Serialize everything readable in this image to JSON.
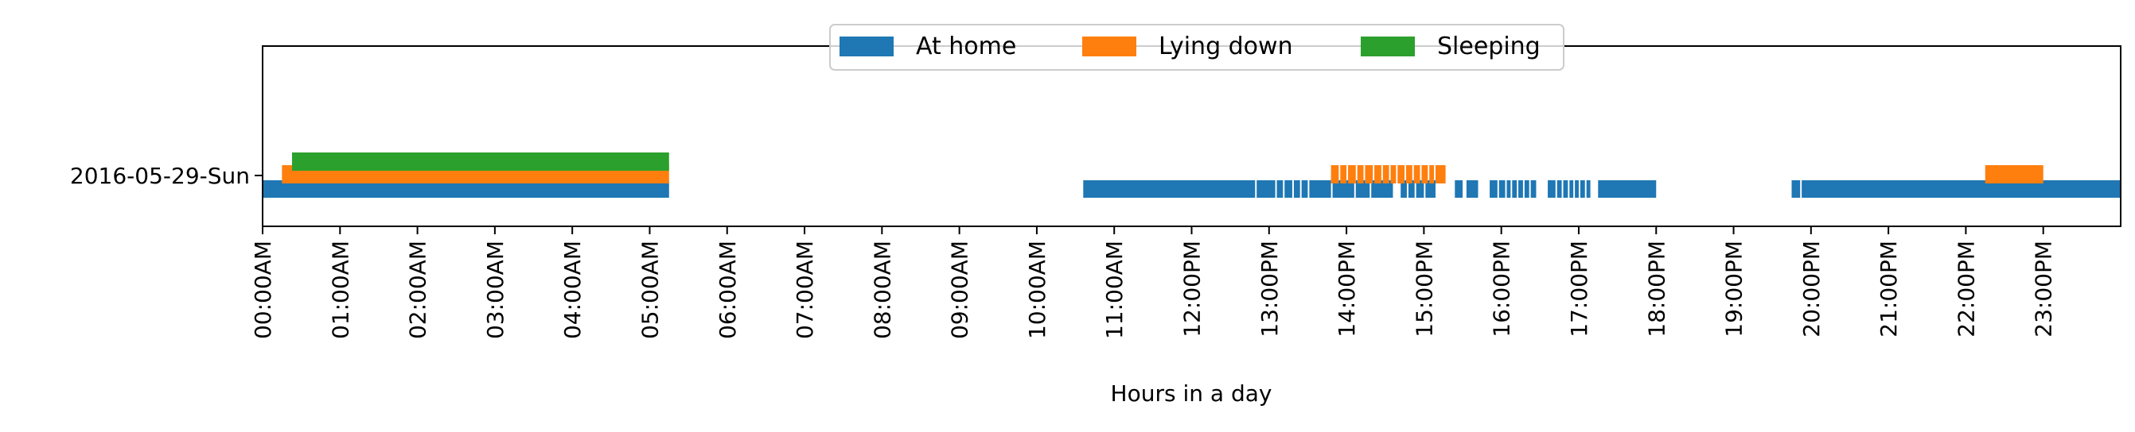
{
  "chart_data": {
    "type": "timeline",
    "title": "",
    "xlabel": "Hours in a day",
    "ylabel": "",
    "xlim": [
      0,
      24
    ],
    "x_unit": "hours",
    "grid": false,
    "legend_position": "upper-center",
    "categories": [
      "2016-05-29-Sun"
    ],
    "x_ticks": [
      {
        "value": 0,
        "label": "00:00AM"
      },
      {
        "value": 1,
        "label": "01:00AM"
      },
      {
        "value": 2,
        "label": "02:00AM"
      },
      {
        "value": 3,
        "label": "03:00AM"
      },
      {
        "value": 4,
        "label": "04:00AM"
      },
      {
        "value": 5,
        "label": "05:00AM"
      },
      {
        "value": 6,
        "label": "06:00AM"
      },
      {
        "value": 7,
        "label": "07:00AM"
      },
      {
        "value": 8,
        "label": "08:00AM"
      },
      {
        "value": 9,
        "label": "09:00AM"
      },
      {
        "value": 10,
        "label": "10:00AM"
      },
      {
        "value": 11,
        "label": "11:00AM"
      },
      {
        "value": 12,
        "label": "12:00PM"
      },
      {
        "value": 13,
        "label": "13:00PM"
      },
      {
        "value": 14,
        "label": "14:00PM"
      },
      {
        "value": 15,
        "label": "15:00PM"
      },
      {
        "value": 16,
        "label": "16:00PM"
      },
      {
        "value": 17,
        "label": "17:00PM"
      },
      {
        "value": 18,
        "label": "18:00PM"
      },
      {
        "value": 19,
        "label": "19:00PM"
      },
      {
        "value": 20,
        "label": "20:00PM"
      },
      {
        "value": 21,
        "label": "21:00PM"
      },
      {
        "value": 22,
        "label": "22:00PM"
      },
      {
        "value": 23,
        "label": "23:00PM"
      }
    ],
    "series": [
      {
        "name": "At home",
        "color": "#1f77b4",
        "intervals": [
          [
            0.0,
            5.25
          ],
          [
            10.6,
            12.82
          ],
          [
            12.84,
            13.08
          ],
          [
            13.1,
            13.18
          ],
          [
            13.2,
            13.3
          ],
          [
            13.32,
            13.4
          ],
          [
            13.42,
            13.5
          ],
          [
            13.52,
            13.8
          ],
          [
            13.82,
            14.1
          ],
          [
            14.12,
            14.3
          ],
          [
            14.32,
            14.6
          ],
          [
            14.7,
            14.78
          ],
          [
            14.8,
            14.88
          ],
          [
            14.9,
            15.0
          ],
          [
            15.02,
            15.15
          ],
          [
            15.4,
            15.5
          ],
          [
            15.55,
            15.7
          ],
          [
            15.85,
            15.95
          ],
          [
            15.97,
            16.05
          ],
          [
            16.07,
            16.12
          ],
          [
            16.14,
            16.2
          ],
          [
            16.22,
            16.28
          ],
          [
            16.3,
            16.36
          ],
          [
            16.38,
            16.45
          ],
          [
            16.6,
            16.7
          ],
          [
            16.72,
            16.78
          ],
          [
            16.8,
            16.86
          ],
          [
            16.88,
            16.93
          ],
          [
            16.95,
            17.0
          ],
          [
            17.02,
            17.08
          ],
          [
            17.1,
            17.15
          ],
          [
            17.25,
            18.0
          ],
          [
            19.75,
            19.86
          ],
          [
            19.88,
            24.0
          ]
        ]
      },
      {
        "name": "Lying down",
        "color": "#ff7f0e",
        "intervals": [
          [
            0.25,
            5.25
          ],
          [
            13.8,
            13.9
          ],
          [
            13.92,
            14.0
          ],
          [
            14.02,
            14.12
          ],
          [
            14.14,
            14.22
          ],
          [
            14.24,
            14.34
          ],
          [
            14.36,
            14.45
          ],
          [
            14.47,
            14.55
          ],
          [
            14.57,
            14.64
          ],
          [
            14.66,
            14.75
          ],
          [
            14.77,
            14.85
          ],
          [
            14.87,
            14.95
          ],
          [
            14.97,
            15.05
          ],
          [
            15.07,
            15.13
          ],
          [
            15.15,
            15.28
          ],
          [
            22.25,
            23.0
          ]
        ]
      },
      {
        "name": "Sleeping",
        "color": "#2ca02c",
        "intervals": [
          [
            0.38,
            5.25
          ]
        ]
      }
    ]
  }
}
